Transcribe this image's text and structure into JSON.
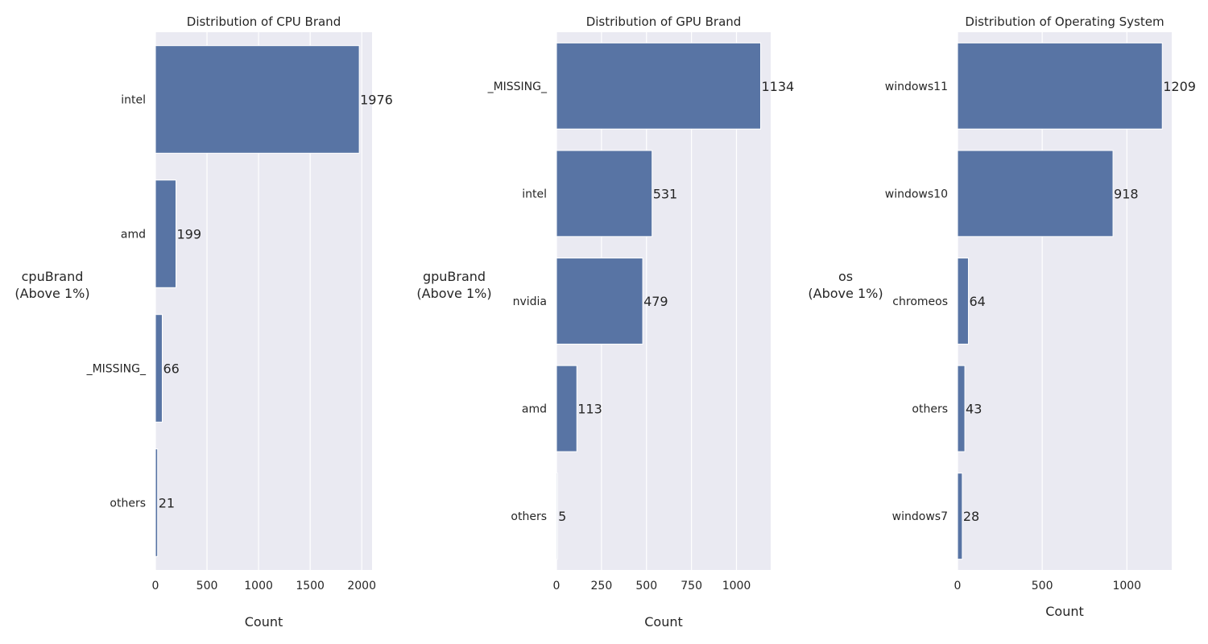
{
  "chart_data": [
    {
      "type": "bar",
      "orientation": "horizontal",
      "title": "Distribution of CPU Brand",
      "ylabel": [
        "cpuBrand",
        "(Above 1%)"
      ],
      "xlabel": "Count",
      "categories": [
        "intel",
        "amd",
        "_MISSING_",
        "others"
      ],
      "values": [
        1976,
        199,
        66,
        21
      ],
      "value_labels": [
        "1976",
        "199",
        "66",
        "21"
      ],
      "xlim": [
        0,
        2100
      ],
      "xticks": [
        0,
        500,
        1000,
        1500,
        2000
      ],
      "xtick_labels": [
        "0",
        "500",
        "1000",
        "1500",
        "2000"
      ],
      "grid": true,
      "bar_color": "#5874a4"
    },
    {
      "type": "bar",
      "orientation": "horizontal",
      "title": "Distribution of GPU Brand",
      "ylabel": [
        "gpuBrand",
        "(Above 1%)"
      ],
      "xlabel": "Count",
      "categories": [
        "_MISSING_",
        "intel",
        "nvidia",
        "amd",
        "others"
      ],
      "values": [
        1134,
        531,
        479,
        113,
        5
      ],
      "value_labels": [
        "1134",
        "531",
        "479",
        "113",
        "5"
      ],
      "xlim": [
        0,
        1190
      ],
      "xticks": [
        0,
        250,
        500,
        750,
        1000
      ],
      "xtick_labels": [
        "0",
        "250",
        "500",
        "750",
        "1000"
      ],
      "grid": true,
      "bar_color": "#5874a4"
    },
    {
      "type": "bar",
      "orientation": "horizontal",
      "title": "Distribution of Operating System",
      "ylabel": [
        "os",
        "(Above 1%)"
      ],
      "xlabel": "Count",
      "categories": [
        "windows11",
        "windows10",
        "chromeos",
        "others",
        "windows7"
      ],
      "values": [
        1209,
        918,
        64,
        43,
        28
      ],
      "value_labels": [
        "1209",
        "918",
        "64",
        "43",
        "28"
      ],
      "xlim": [
        0,
        1265
      ],
      "xticks": [
        0,
        500,
        1000
      ],
      "xtick_labels": [
        "0",
        "500",
        "1000"
      ],
      "grid": true,
      "bar_color": "#5874a4"
    }
  ]
}
